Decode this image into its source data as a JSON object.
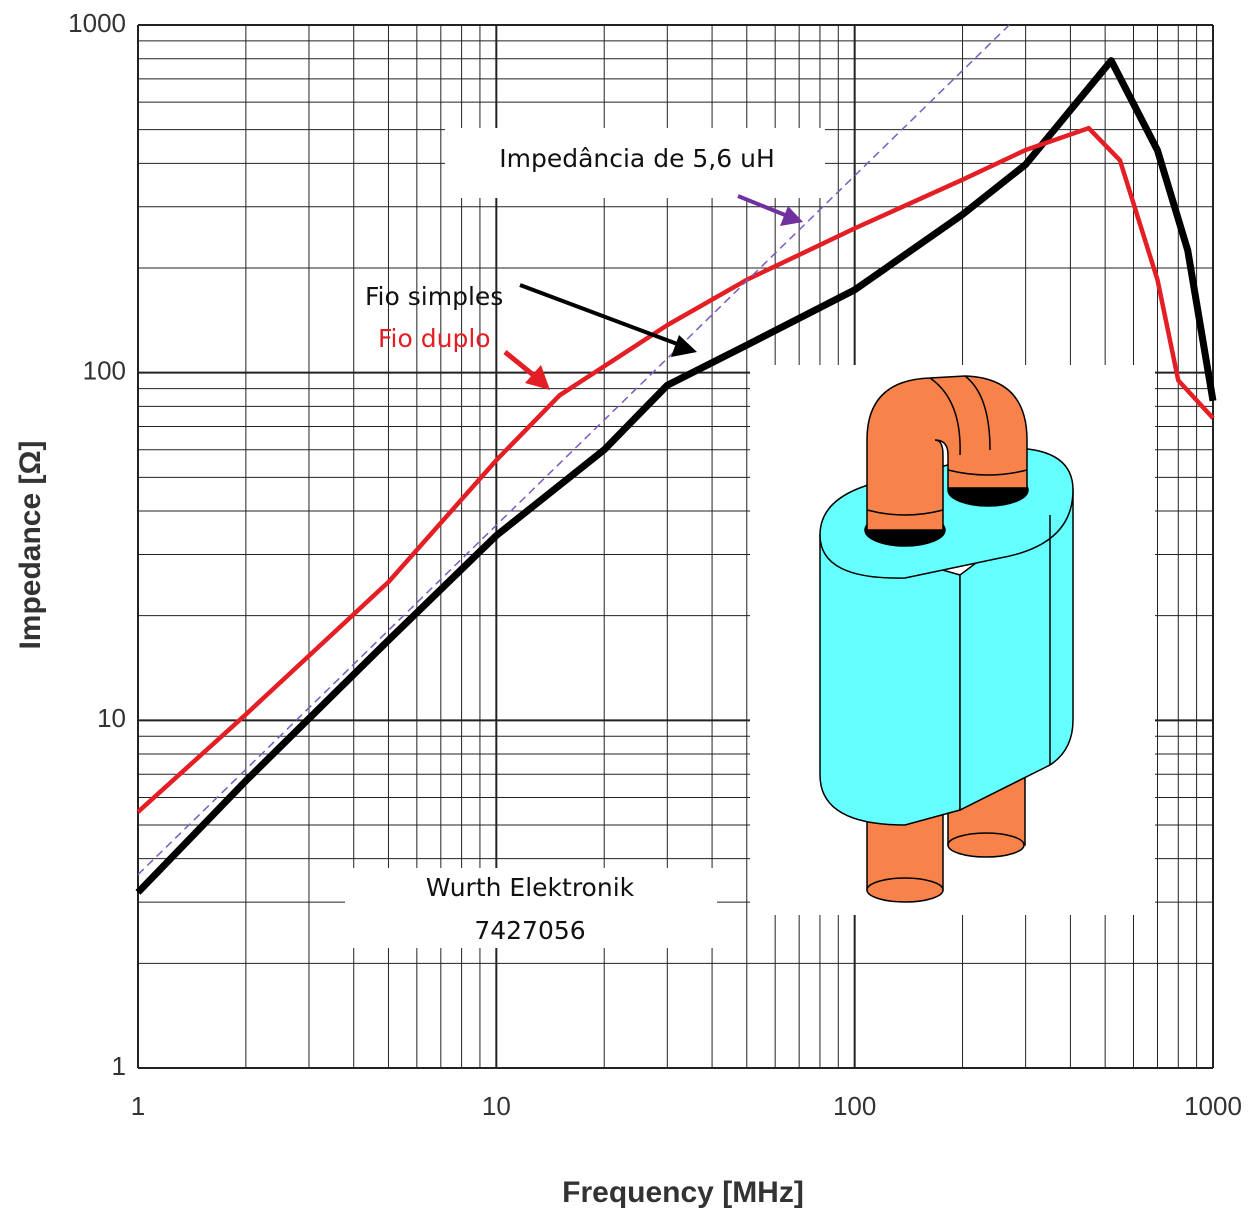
{
  "chart_data": {
    "type": "line",
    "x_label": "Frequency [MHz]",
    "y_label": "Impedance [Ω]",
    "xscale": "log",
    "yscale": "log",
    "xlim": [
      1,
      1000
    ],
    "ylim": [
      1,
      1000
    ],
    "xticks": [
      1,
      10,
      100,
      1000
    ],
    "yticks": [
      1,
      10,
      100,
      1000
    ],
    "grid": true,
    "series": [
      {
        "name": "Fio simples",
        "color": "#000000",
        "x": [
          1,
          2,
          5,
          10,
          20,
          30,
          50,
          100,
          200,
          300,
          400,
          520,
          700,
          850,
          1000
        ],
        "values": [
          3.2,
          6.7,
          17,
          34,
          60,
          92,
          120,
          173,
          285,
          397,
          569,
          790,
          436,
          225,
          83
        ]
      },
      {
        "name": "Fio duplo",
        "color": "#e31e24",
        "x": [
          1,
          2,
          5,
          10,
          15,
          30,
          50,
          100,
          200,
          300,
          450,
          550,
          700,
          800,
          1000
        ],
        "values": [
          5.45,
          10.4,
          25,
          56,
          86,
          137,
          185,
          260,
          359,
          437,
          505,
          408,
          185,
          95,
          74
        ]
      },
      {
        "name": "Impedância de 5,6  uH",
        "color": "#7a5cc0",
        "dashed": true,
        "x": [
          1,
          270
        ],
        "values": [
          3.6,
          1000
        ]
      }
    ],
    "annotations": [
      "Wurth Elektronik",
      "7427056"
    ]
  }
}
